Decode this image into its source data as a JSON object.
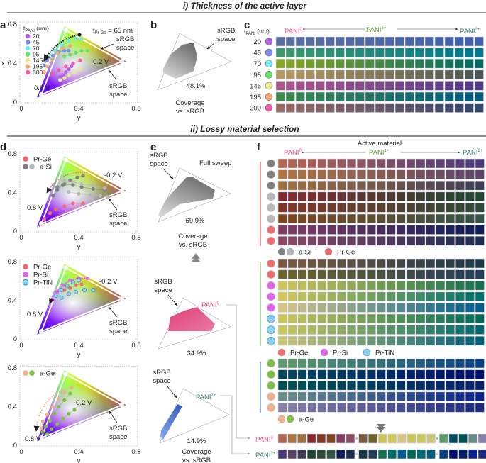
{
  "headers": {
    "section_i": "i)  Thickness of the active layer",
    "section_ii": "ii)    Lossy material selection"
  },
  "panel_labels": {
    "a": "a",
    "b": "b",
    "c": "c",
    "d": "d",
    "e": "e",
    "f": "f"
  },
  "common": {
    "srgb_space_1": "sRGB",
    "srgb_space_2": "space",
    "coverage_1": "Coverage",
    "coverage_2": "vs. sRGB",
    "v_neg": "-0.2 V",
    "v_pos": "0.8 V",
    "pani": "PANI",
    "pani0_sup": "0",
    "pani1_sup": "1+",
    "pani2_sup": "2+",
    "active_material": "Active material",
    "t_pani_t": "t",
    "t_pani_sub": "PANI",
    "t_pani_unit": " (nm)",
    "t_prge_t": "t",
    "t_prge_sub": "Pr-Ge",
    "t_prge_rest": " = 65 nm",
    "full_sweep": "Full sweep"
  },
  "colors": {
    "pani0": "#f0508a",
    "pani1": "#6a9a3a",
    "pani2": "#2e7a7a",
    "red_group": "#f07070",
    "green_group": "#98cc80",
    "blue_group": "#7a9ad0"
  },
  "chart_data": [
    {
      "id": "a",
      "type": "scatter",
      "xlabel": "y",
      "ylabel": "x",
      "xticks": [
        "0",
        "0.4",
        "0.8"
      ],
      "yticks": [
        "0",
        "0.4",
        "0.8"
      ],
      "xlim": [
        0,
        0.8
      ],
      "ylim": [
        0,
        0.8
      ],
      "gamut_triangle": [
        [
          0.3,
          0.77
        ],
        [
          0.73,
          0.41
        ],
        [
          0.11,
          0.04
        ]
      ],
      "srgb_triangle": [
        [
          0.31,
          0.73
        ],
        [
          0.7,
          0.41
        ],
        [
          0.14,
          0.07
        ]
      ],
      "legend_title": "tPANI (nm)",
      "series": [
        {
          "name": "20",
          "color": "#b060e0",
          "points": [
            [
              0.27,
              0.25
            ],
            [
              0.29,
              0.27
            ],
            [
              0.31,
              0.3
            ],
            [
              0.33,
              0.33
            ],
            [
              0.35,
              0.36
            ]
          ]
        },
        {
          "name": "45",
          "color": "#7a8ae8",
          "points": [
            [
              0.16,
              0.37
            ],
            [
              0.18,
              0.42
            ],
            [
              0.22,
              0.47
            ],
            [
              0.26,
              0.51
            ],
            [
              0.3,
              0.52
            ],
            [
              0.33,
              0.52
            ]
          ]
        },
        {
          "name": "70",
          "color": "#6fe8f0",
          "points": [
            [
              0.19,
              0.46
            ],
            [
              0.23,
              0.52
            ],
            [
              0.28,
              0.58
            ],
            [
              0.33,
              0.62
            ],
            [
              0.38,
              0.64
            ],
            [
              0.42,
              0.64
            ]
          ]
        },
        {
          "name": "95",
          "color": "#6cde6c",
          "points": [
            [
              0.3,
              0.46
            ],
            [
              0.34,
              0.48
            ],
            [
              0.38,
              0.5
            ],
            [
              0.42,
              0.52
            ],
            [
              0.46,
              0.52
            ]
          ]
        },
        {
          "name": "145",
          "color": "#e8e890",
          "points": [
            [
              0.27,
              0.22
            ],
            [
              0.3,
              0.24
            ],
            [
              0.33,
              0.27
            ],
            [
              0.37,
              0.3
            ],
            [
              0.41,
              0.33
            ]
          ]
        },
        {
          "name": "195",
          "color": "#f0a878",
          "points": [
            [
              0.16,
              0.3
            ],
            [
              0.18,
              0.36
            ],
            [
              0.21,
              0.43
            ],
            [
              0.25,
              0.5
            ],
            [
              0.29,
              0.55
            ],
            [
              0.34,
              0.57
            ]
          ]
        },
        {
          "name": "300",
          "color": "#f05aa8",
          "points": [
            [
              0.22,
              0.28
            ],
            [
              0.26,
              0.32
            ],
            [
              0.31,
              0.36
            ],
            [
              0.36,
              0.39
            ],
            [
              0.41,
              0.42
            ]
          ]
        }
      ]
    },
    {
      "id": "d1",
      "type": "scatter",
      "xlabel": "y",
      "xticks": [
        "0",
        "0.4",
        "0.8"
      ],
      "yticks": [
        "0",
        "0.4",
        "0.8"
      ],
      "xlim": [
        0,
        0.8
      ],
      "ylim": [
        0,
        0.8
      ],
      "gamut_triangle": [
        [
          0.3,
          0.77
        ],
        [
          0.73,
          0.41
        ],
        [
          0.11,
          0.04
        ]
      ],
      "srgb_triangle": [
        [
          0.31,
          0.73
        ],
        [
          0.7,
          0.41
        ],
        [
          0.14,
          0.07
        ]
      ],
      "legend": [
        {
          "label": "Pr-Ge",
          "colors": [
            "#f26a6a"
          ]
        },
        {
          "label": "a-Si",
          "colors": [
            "#808080",
            "#b8b8b8"
          ]
        }
      ],
      "series": [
        {
          "color": "#f26a6a",
          "points": [
            [
              0.16,
              0.12
            ],
            [
              0.2,
              0.18
            ],
            [
              0.24,
              0.22
            ],
            [
              0.3,
              0.25
            ],
            [
              0.36,
              0.28
            ],
            [
              0.43,
              0.28
            ]
          ]
        },
        {
          "color": "#808080",
          "points": [
            [
              0.22,
              0.36
            ],
            [
              0.25,
              0.42
            ],
            [
              0.29,
              0.47
            ],
            [
              0.34,
              0.52
            ],
            [
              0.39,
              0.55
            ],
            [
              0.43,
              0.57
            ]
          ]
        },
        {
          "color": "#808080",
          "points": [
            [
              0.25,
              0.45
            ],
            [
              0.3,
              0.48
            ],
            [
              0.36,
              0.47
            ],
            [
              0.42,
              0.45
            ],
            [
              0.5,
              0.43
            ],
            [
              0.58,
              0.42
            ]
          ]
        },
        {
          "color": "#b8b8b8",
          "points": [
            [
              0.3,
              0.52
            ],
            [
              0.36,
              0.5
            ],
            [
              0.42,
              0.48
            ],
            [
              0.5,
              0.47
            ],
            [
              0.58,
              0.44
            ]
          ]
        },
        {
          "color": "#b8b8b8",
          "points": [
            [
              0.33,
              0.4
            ],
            [
              0.4,
              0.38
            ],
            [
              0.48,
              0.37
            ],
            [
              0.55,
              0.36
            ],
            [
              0.6,
              0.35
            ]
          ]
        }
      ]
    },
    {
      "id": "d2",
      "type": "scatter",
      "xlabel": "y",
      "xticks": [
        "0",
        "0.4",
        "0.8"
      ],
      "yticks": [
        "0",
        "0.4",
        "0.8"
      ],
      "xlim": [
        0,
        0.8
      ],
      "ylim": [
        0,
        0.8
      ],
      "gamut_triangle": [
        [
          0.3,
          0.77
        ],
        [
          0.73,
          0.41
        ],
        [
          0.11,
          0.04
        ]
      ],
      "srgb_triangle": [
        [
          0.31,
          0.73
        ],
        [
          0.7,
          0.41
        ],
        [
          0.14,
          0.07
        ]
      ],
      "legend": [
        {
          "label": "Pr-Ge",
          "colors": [
            "#f26a6a"
          ]
        },
        {
          "label": "Pr-Si",
          "colors": [
            "#e060f0"
          ]
        },
        {
          "label": "Pr-TiN",
          "colors": [
            "#8fd0f0"
          ]
        }
      ],
      "series": [
        {
          "color": "#f26a6a",
          "points": [
            [
              0.3,
              0.5
            ],
            [
              0.34,
              0.52
            ],
            [
              0.38,
              0.55
            ],
            [
              0.42,
              0.56
            ]
          ]
        },
        {
          "color": "#e060f0",
          "points": [
            [
              0.22,
              0.4
            ],
            [
              0.25,
              0.48
            ],
            [
              0.29,
              0.55
            ],
            [
              0.34,
              0.6
            ],
            [
              0.4,
              0.62
            ],
            [
              0.46,
              0.62
            ]
          ]
        },
        {
          "color": "#8fd0f0",
          "points": [
            [
              0.24,
              0.44
            ],
            [
              0.28,
              0.5
            ],
            [
              0.32,
              0.54
            ],
            [
              0.36,
              0.58
            ],
            [
              0.4,
              0.6
            ]
          ]
        },
        {
          "color": "#8fd0f0",
          "points": [
            [
              0.28,
              0.42
            ],
            [
              0.33,
              0.46
            ],
            [
              0.38,
              0.48
            ],
            [
              0.44,
              0.5
            ],
            [
              0.5,
              0.5
            ]
          ]
        }
      ]
    },
    {
      "id": "d3",
      "type": "scatter",
      "xlabel": "y",
      "xticks": [
        "0",
        "0.4",
        "0.8"
      ],
      "yticks": [
        "0",
        "0.4",
        "0.8"
      ],
      "xlim": [
        0,
        0.8
      ],
      "ylim": [
        0,
        0.8
      ],
      "gamut_triangle": [
        [
          0.3,
          0.77
        ],
        [
          0.73,
          0.41
        ],
        [
          0.11,
          0.04
        ]
      ],
      "srgb_triangle": [
        [
          0.31,
          0.73
        ],
        [
          0.7,
          0.41
        ],
        [
          0.14,
          0.07
        ]
      ],
      "legend": [
        {
          "label": "a-Ge",
          "colors": [
            "#f4b08a",
            "#80c040"
          ]
        }
      ],
      "series": [
        {
          "color": "#f4b08a",
          "points": [
            [
              0.14,
              0.17
            ],
            [
              0.15,
              0.24
            ],
            [
              0.18,
              0.31
            ],
            [
              0.22,
              0.39
            ],
            [
              0.26,
              0.47
            ],
            [
              0.3,
              0.54
            ],
            [
              0.35,
              0.59
            ]
          ]
        },
        {
          "color": "#80c040",
          "points": [
            [
              0.15,
              0.13
            ],
            [
              0.17,
              0.19
            ],
            [
              0.2,
              0.25
            ],
            [
              0.23,
              0.32
            ],
            [
              0.26,
              0.39
            ],
            [
              0.3,
              0.46
            ],
            [
              0.34,
              0.53
            ]
          ]
        },
        {
          "color": "#80c040",
          "points": [
            [
              0.18,
              0.11
            ],
            [
              0.21,
              0.16
            ],
            [
              0.25,
              0.21
            ],
            [
              0.29,
              0.27
            ],
            [
              0.33,
              0.32
            ],
            [
              0.37,
              0.36
            ]
          ]
        }
      ]
    }
  ],
  "coverage": {
    "b": {
      "value": "48.1%",
      "fill": "gray"
    },
    "e_full": {
      "value": "69.9%",
      "fill": "gray"
    },
    "e_pani0": {
      "value": "34.9%",
      "fill": "#e0507e"
    },
    "e_pani2": {
      "value": "14.9%",
      "fill": "#4a72c8"
    }
  },
  "grid_c": {
    "columns": 21,
    "rows": [
      {
        "label": "20",
        "marker": "#b060e0",
        "from": "#5a6fa0",
        "to": "#4060b0"
      },
      {
        "label": "45",
        "marker": "#7a8ae8",
        "from": "#3e9a6c",
        "to": "#00788e"
      },
      {
        "label": "70",
        "marker": "#6fe8f0",
        "from": "#8aa528",
        "to": "#006a62"
      },
      {
        "label": "95",
        "marker": "#6cde6c",
        "from": "#b59a5f",
        "to": "#4a5850"
      },
      {
        "label": "145",
        "marker": "#e8e890",
        "from": "#aa5488",
        "to": "#4d3a85"
      },
      {
        "label": "195",
        "marker": "#f0a878",
        "from": "#3a8a4c",
        "to": "#005a80"
      },
      {
        "label": "300",
        "marker": "#f05aa8",
        "from": "#9a6a66",
        "to": "#33466e"
      }
    ]
  },
  "grid_f": {
    "columns": 21,
    "groups": [
      {
        "legend": [
          {
            "label": "a-Si",
            "colors": [
              "#808080",
              "#b8b8b8"
            ]
          },
          {
            "label": "Pr-Ge",
            "colors": [
              "#f26a6a"
            ]
          }
        ],
        "rows": [
          {
            "marker": "#808080",
            "from": "#b5654f",
            "to": "#4a3a7c"
          },
          {
            "marker": "#808080",
            "from": "#b07440",
            "to": "#5a4468"
          },
          {
            "marker": "#808080",
            "from": "#a0703f",
            "to": "#3f3d56"
          },
          {
            "marker": "#b8b8b8",
            "from": "#852b30",
            "to": "#1f4833"
          },
          {
            "marker": "#b8b8b8",
            "from": "#843626",
            "to": "#2e4a38"
          },
          {
            "marker": "#b8b8b8",
            "from": "#7f4620",
            "to": "#335646"
          },
          {
            "marker": "#f26a6a",
            "from": "#813e63",
            "to": "#0e1e57"
          },
          {
            "marker": "#f26a6a",
            "from": "#8a4a66",
            "to": "#1c2b52"
          }
        ]
      },
      {
        "legend": [
          {
            "label": "Pr-Ge",
            "colors": [
              "#f26a6a"
            ]
          },
          {
            "label": "Pr-Si",
            "colors": [
              "#e060f0"
            ]
          },
          {
            "label": "Pr-TiN",
            "colors": [
              "#8fd0f0"
            ]
          }
        ],
        "rows": [
          {
            "marker": "#f26a6a",
            "from": "#7c5a42",
            "to": "#1b3a47"
          },
          {
            "marker": "#f26a6a",
            "from": "#6e652c",
            "to": "#243d5a"
          },
          {
            "marker": "#e060f0",
            "from": "#cfc45c",
            "to": "#17704e"
          },
          {
            "marker": "#e060f0",
            "from": "#d0c65a",
            "to": "#00706c"
          },
          {
            "marker": "#e060f0",
            "from": "#d4c486",
            "to": "#005f90"
          },
          {
            "marker": "#8fd0f0",
            "from": "#c9c55a",
            "to": "#006a59"
          },
          {
            "marker": "#8fd0f0",
            "from": "#c9c760",
            "to": "#006870"
          },
          {
            "marker": "#8fd0f0",
            "from": "#c9c679",
            "to": "#005f7a"
          }
        ]
      },
      {
        "legend": [
          {
            "label": "a-Ge",
            "colors": [
              "#f4b08a",
              "#80c040"
            ]
          }
        ],
        "rows": [
          {
            "marker": "#80c040",
            "from": "#5f9a6c",
            "to": "#083f80"
          },
          {
            "marker": "#80c040",
            "from": "#02495c",
            "to": "#001073"
          },
          {
            "marker": "#80c040",
            "from": "#005252",
            "to": "#07206a"
          },
          {
            "marker": "#f4b08a",
            "from": "#6b8d89",
            "to": "#0a2490"
          },
          {
            "marker": "#f4b08a",
            "from": "#8881a6",
            "to": "#1c2a7e"
          }
        ]
      }
    ]
  }
}
